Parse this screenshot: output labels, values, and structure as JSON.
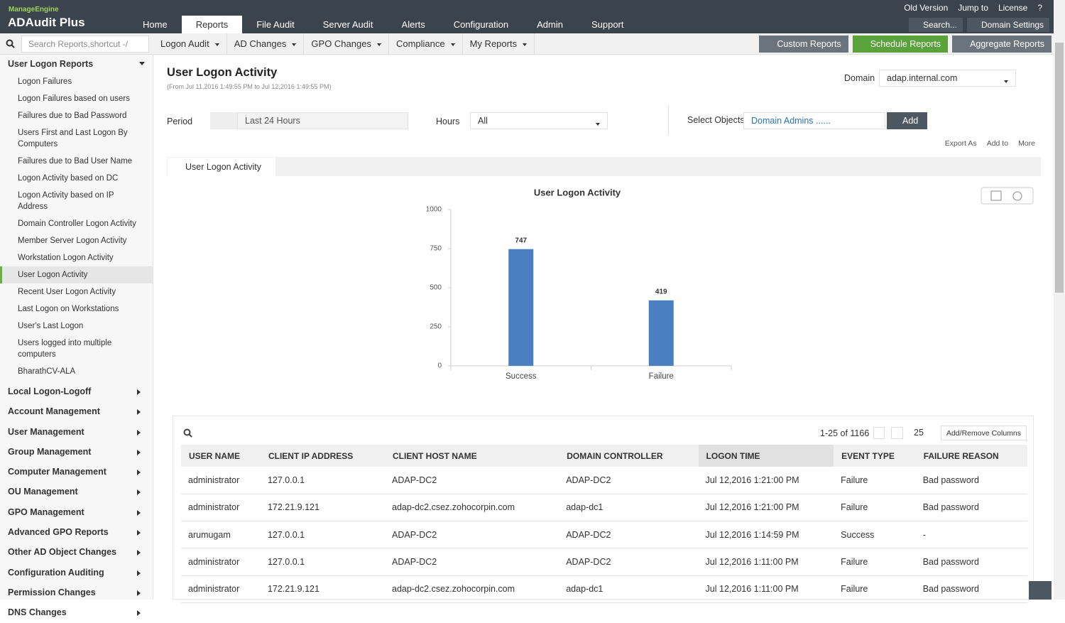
{
  "header": {
    "brand_small": "ManageEngine",
    "brand": "ADAudit Plus",
    "top_links": [
      "Old Version",
      "Jump to",
      "License",
      "?"
    ],
    "tabs": [
      "Home",
      "Reports",
      "File Audit",
      "Server Audit",
      "Alerts",
      "Configuration",
      "Admin",
      "Support"
    ],
    "search": "Search...",
    "domain_settings": "Domain Settings"
  },
  "toolbar": {
    "search_placeholder": "Search Reports,shortcut -/",
    "menus": [
      "Logon Audit",
      "AD Changes",
      "GPO Changes",
      "Compliance",
      "My Reports"
    ],
    "buttons": [
      "Custom Reports",
      "Schedule Reports",
      "Aggregate Reports"
    ]
  },
  "sidebar": {
    "group": "User Logon Reports",
    "items": [
      "Logon Failures",
      "Logon Failures based on users",
      "Failures due to Bad Password",
      "Users First and Last Logon By Computers",
      "Failures due to Bad User Name",
      "Logon Activity based on DC",
      "Logon Activity based on IP Address",
      "Domain Controller Logon Activity",
      "Member Server Logon Activity",
      "Workstation Logon Activity",
      "User Logon Activity",
      "Recent User Logon Activity",
      "Last Logon on Workstations",
      "User's Last Logon",
      "Users logged into multiple computers",
      "BharathCV-ALA"
    ],
    "sections": [
      "Local Logon-Logoff",
      "Account Management",
      "User Management",
      "Group Management",
      "Computer Management",
      "OU Management",
      "GPO Management",
      "Advanced GPO Reports",
      "Other AD Object Changes",
      "Configuration Auditing",
      "Permission Changes",
      "DNS Changes"
    ]
  },
  "report": {
    "title": "User Logon Activity",
    "range": "(From Jul 11,2016 1:49:55 PM to Jul 12,2016 1:49:55 PM)",
    "domain_label": "Domain",
    "domain": "adap.internal.com",
    "period_label": "Period",
    "period": "Last 24 Hours",
    "hours_label": "Hours",
    "hours": "All",
    "objects_label": "Select Objects",
    "objects": "Domain Admins ......",
    "add": "Add",
    "actions": [
      "Export As",
      "Add to",
      "More"
    ],
    "tab": "User Logon Activity"
  },
  "chart_data": {
    "type": "bar",
    "title": "User Logon Activity",
    "categories": [
      "Success",
      "Failure"
    ],
    "values": [
      747,
      419
    ],
    "color": "#4a80c1",
    "ylim": [
      0,
      1000
    ],
    "yticks": [
      0,
      250,
      500,
      750,
      1000
    ]
  },
  "table": {
    "pagination": "1-25 of 1166",
    "page_size": "25",
    "add_remove": "Add/Remove Columns",
    "columns": [
      "USER NAME",
      "CLIENT IP ADDRESS",
      "CLIENT HOST NAME",
      "DOMAIN CONTROLLER",
      "LOGON TIME",
      "EVENT TYPE",
      "FAILURE REASON"
    ],
    "rows": [
      [
        "administrator",
        "127.0.0.1",
        "ADAP-DC2",
        "ADAP-DC2",
        "Jul 12,2016 1:21:00 PM",
        "Failure",
        "Bad password"
      ],
      [
        "administrator",
        "172.21.9.121",
        "adap-dc2.csez.zohocorpin.com",
        "adap-dc1",
        "Jul 12,2016 1:21:00 PM",
        "Failure",
        "Bad password"
      ],
      [
        "arumugam",
        "127.0.0.1",
        "ADAP-DC2",
        "ADAP-DC2",
        "Jul 12,2016 1:14:59 PM",
        "Success",
        "-"
      ],
      [
        "administrator",
        "127.0.0.1",
        "ADAP-DC2",
        "ADAP-DC2",
        "Jul 12,2016 1:11:00 PM",
        "Failure",
        "Bad password"
      ],
      [
        "administrator",
        "172.21.9.121",
        "adap-dc2.csez.zohocorpin.com",
        "adap-dc1",
        "Jul 12,2016 1:11:00 PM",
        "Failure",
        "Bad password"
      ]
    ]
  }
}
